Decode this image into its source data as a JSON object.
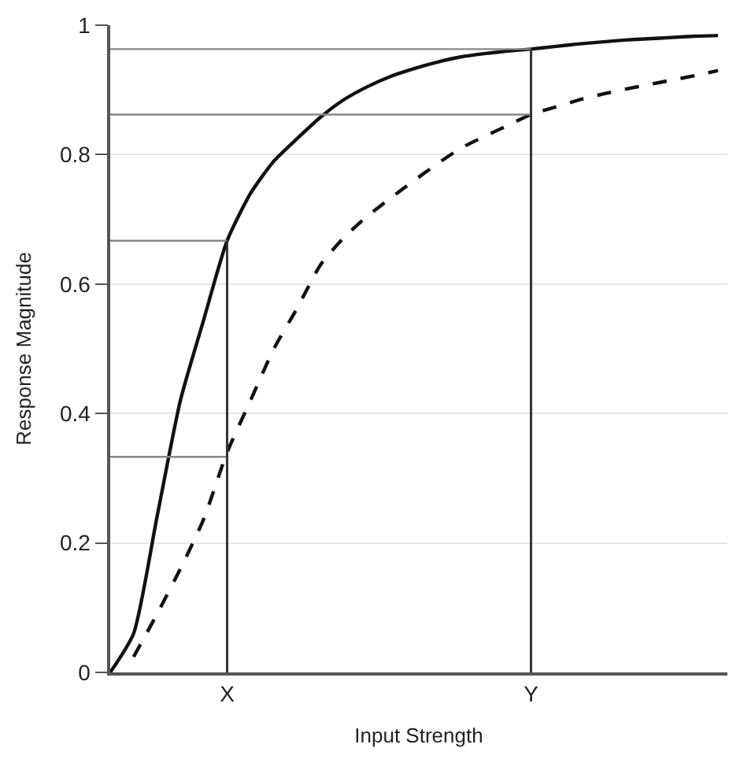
{
  "chart_data": {
    "type": "line",
    "xlabel": "Input Strength",
    "ylabel": "Response Magnitude",
    "categories": [
      null,
      null,
      null,
      null,
      null,
      "X",
      null,
      null,
      null,
      null,
      null,
      null,
      null,
      null,
      null,
      null,
      null,
      null,
      "Y",
      null,
      null,
      null,
      null,
      null,
      null,
      null,
      null
    ],
    "ylim": [
      0,
      1
    ],
    "yticks": [
      0,
      0.2,
      0.4,
      0.6,
      0.8,
      1
    ],
    "grid": "y",
    "marker": "none",
    "series": [
      {
        "color": "#111111",
        "line_style": "solid",
        "values": [
          0,
          0.06,
          0.24,
          0.42,
          0.545,
          0.667,
          0.74,
          0.79,
          0.825,
          0.858,
          0.885,
          0.905,
          0.921,
          0.933,
          0.943,
          0.951,
          0.956,
          0.96,
          0.963,
          0.967,
          0.971,
          0.974,
          0.977,
          0.979,
          0.981,
          0.983,
          0.984
        ]
      },
      {
        "color": "#111111",
        "line_style": "dashed",
        "values": [
          null,
          0.024,
          0.09,
          0.16,
          0.237,
          0.34,
          0.42,
          0.5,
          0.563,
          0.63,
          0.672,
          0.705,
          0.733,
          0.76,
          0.786,
          0.81,
          0.828,
          0.845,
          0.862,
          0.873,
          0.884,
          0.893,
          0.901,
          0.908,
          0.915,
          0.922,
          0.93
        ]
      },
      {
        "color": "#888888",
        "line_style": "solid",
        "values": [
          0.667,
          0.667,
          0.667,
          0.667,
          0.667,
          0.667,
          null,
          null,
          null,
          null,
          null,
          null,
          null,
          null,
          null,
          null,
          null,
          null,
          null,
          null,
          null,
          null,
          null,
          null,
          null,
          null,
          null
        ]
      },
      {
        "color": "#888888",
        "line_style": "solid",
        "values": [
          0.333,
          0.333,
          0.333,
          0.333,
          0.333,
          0.333,
          null,
          null,
          null,
          null,
          null,
          null,
          null,
          null,
          null,
          null,
          null,
          null,
          null,
          null,
          null,
          null,
          null,
          null,
          null,
          null,
          null
        ]
      },
      {
        "color": "#888888",
        "line_style": "solid",
        "values": [
          0.963,
          0.963,
          0.963,
          0.963,
          0.963,
          0.963,
          0.963,
          0.963,
          0.963,
          0.963,
          0.963,
          0.963,
          0.963,
          0.963,
          0.963,
          0.963,
          0.963,
          0.963,
          0.963,
          null,
          null,
          null,
          null,
          null,
          null,
          null,
          null
        ]
      },
      {
        "color": "#888888",
        "line_style": "solid",
        "values": [
          0.862,
          0.862,
          0.862,
          0.862,
          0.862,
          0.862,
          0.862,
          0.862,
          0.862,
          0.862,
          0.862,
          0.862,
          0.862,
          0.862,
          0.862,
          0.862,
          0.862,
          0.862,
          0.862,
          null,
          null,
          null,
          null,
          null,
          null,
          null,
          null
        ]
      }
    ],
    "ref_lines": [
      {
        "axis": "x",
        "value": "X",
        "color": "#333333"
      },
      {
        "axis": "x",
        "value": "Y",
        "color": "#333333"
      }
    ]
  }
}
